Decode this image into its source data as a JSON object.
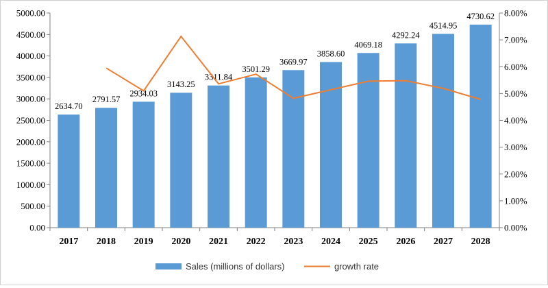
{
  "chart_data": {
    "type": "bar",
    "categories": [
      "2017",
      "2018",
      "2019",
      "2020",
      "2021",
      "2022",
      "2023",
      "2024",
      "2025",
      "2026",
      "2027",
      "2028"
    ],
    "series": [
      {
        "name": "Sales (millions of dollars)",
        "type": "bar",
        "axis": "left",
        "color": "#5b9bd5",
        "values": [
          2634.7,
          2791.57,
          2934.03,
          3143.25,
          3311.84,
          3501.29,
          3669.97,
          3858.6,
          4069.18,
          4292.24,
          4514.95,
          4730.62
        ],
        "value_labels": [
          "2634.70",
          "2791.57",
          "2934.03",
          "3143.25",
          "3311.84",
          "3501.29",
          "3669.97",
          "3858.60",
          "4069.18",
          "4292.24",
          "4514.95",
          "4730.62"
        ]
      },
      {
        "name": "growth rate",
        "type": "line",
        "axis": "right",
        "color": "#ed7d31",
        "values": [
          null,
          5.95,
          5.1,
          7.13,
          5.36,
          5.72,
          4.82,
          5.14,
          5.46,
          5.48,
          5.19,
          4.78
        ]
      }
    ],
    "y_left": {
      "min": 0,
      "max": 5000,
      "step": 500,
      "tick_labels": [
        "0.00",
        "500.00",
        "1000.00",
        "1500.00",
        "2000.00",
        "2500.00",
        "3000.00",
        "3500.00",
        "4000.00",
        "4500.00",
        "5000.00"
      ]
    },
    "y_right": {
      "min": 0,
      "max": 8,
      "step": 1,
      "tick_labels": [
        "0.00%",
        "1.00%",
        "2.00%",
        "3.00%",
        "4.00%",
        "5.00%",
        "6.00%",
        "7.00%",
        "8.00%"
      ]
    },
    "grid": false,
    "legend_position": "bottom-center",
    "title": "",
    "xlabel": "",
    "ylabel": ""
  }
}
